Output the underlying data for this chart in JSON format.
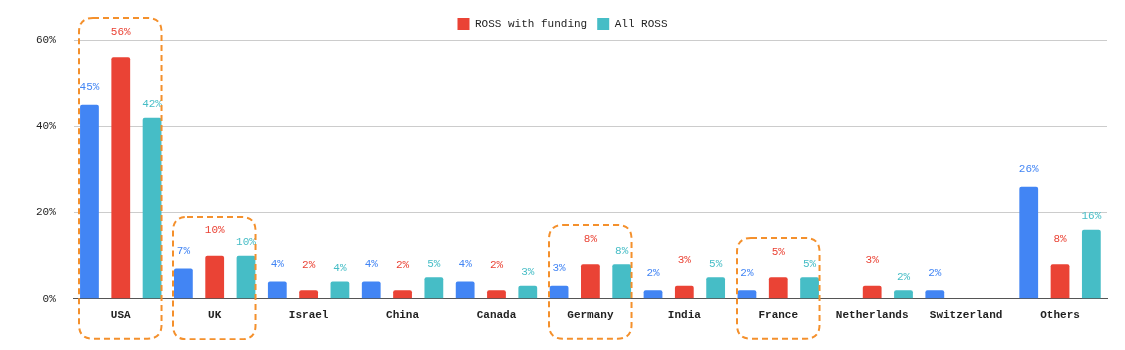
{
  "chart_data": {
    "type": "bar",
    "categories": [
      "USA",
      "UK",
      "Israel",
      "China",
      "Canada",
      "Germany",
      "India",
      "France",
      "Netherlands",
      "Switzerland",
      "Others"
    ],
    "series": [
      {
        "color": "#4285f4",
        "values": [
          45,
          7,
          4,
          4,
          4,
          3,
          2,
          2,
          null,
          2,
          26
        ],
        "value_labels": [
          "45%",
          "7%",
          "4%",
          "4%",
          "4%",
          "3%",
          "2%",
          "2%",
          null,
          "2%",
          "26%"
        ]
      },
      {
        "name": "ROSS with funding",
        "color": "#ea4335",
        "values": [
          56,
          10,
          2,
          2,
          2,
          8,
          3,
          5,
          3,
          null,
          8
        ],
        "value_labels": [
          "56%",
          "10%",
          "2%",
          "2%",
          "2%",
          "8%",
          "3%",
          "5%",
          "3%",
          null,
          "8%"
        ]
      },
      {
        "name": "All ROSS",
        "color": "#46bdc6",
        "values": [
          42,
          10,
          4,
          5,
          3,
          8,
          5,
          5,
          2,
          null,
          16
        ],
        "value_labels": [
          "42%",
          "10%",
          "4%",
          "5%",
          "3%",
          "8%",
          "5%",
          "5%",
          "2%",
          null,
          "16%"
        ]
      }
    ],
    "ylim": [
      0,
      60
    ],
    "yticks": [
      {
        "value": 0,
        "label": "0%"
      },
      {
        "value": 20,
        "label": "20%"
      },
      {
        "value": 40,
        "label": "40%"
      },
      {
        "value": 60,
        "label": "60%"
      }
    ],
    "grid": "y",
    "legend": "top"
  }
}
